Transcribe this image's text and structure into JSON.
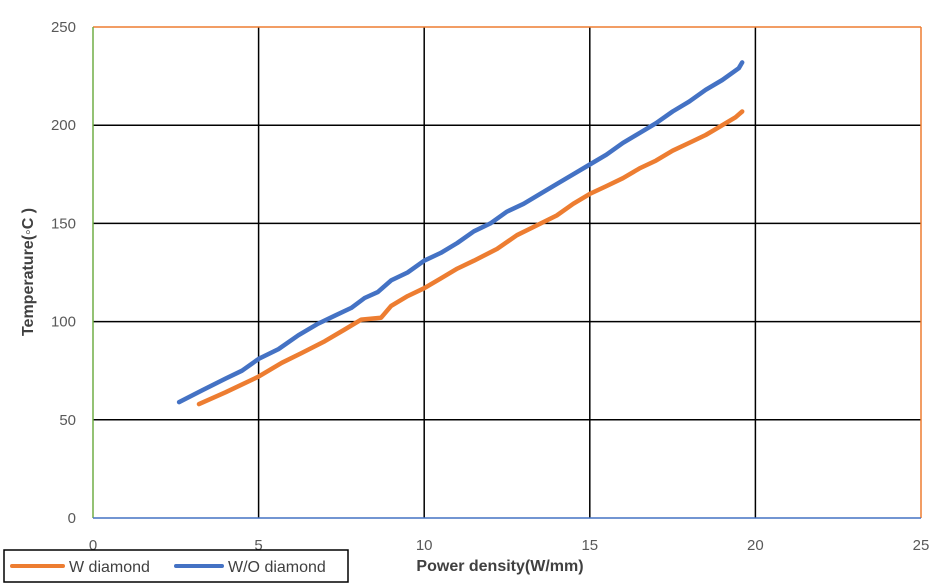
{
  "chart_data": {
    "type": "line",
    "title": "",
    "xlabel": "Power density(W/mm)",
    "ylabel": "Temperature(◦C )",
    "xlim": [
      0,
      25
    ],
    "ylim": [
      0,
      250
    ],
    "xticks": [
      0,
      5,
      10,
      15,
      20,
      25
    ],
    "yticks": [
      0,
      50,
      100,
      150,
      200,
      250
    ],
    "grid": true,
    "legend_position": "bottom-left",
    "series": [
      {
        "name": "W diamond",
        "color": "#ED7D31",
        "points": [
          [
            3.2,
            58
          ],
          [
            4.0,
            64
          ],
          [
            5.0,
            72
          ],
          [
            5.7,
            79
          ],
          [
            6.3,
            84
          ],
          [
            7.0,
            90
          ],
          [
            7.6,
            96
          ],
          [
            8.1,
            101
          ],
          [
            8.7,
            102
          ],
          [
            9.0,
            108
          ],
          [
            9.5,
            113
          ],
          [
            10.0,
            117
          ],
          [
            10.5,
            122
          ],
          [
            11.0,
            127
          ],
          [
            11.5,
            131
          ],
          [
            12.2,
            137
          ],
          [
            12.8,
            144
          ],
          [
            13.4,
            149
          ],
          [
            14.0,
            154
          ],
          [
            14.5,
            160
          ],
          [
            15.0,
            165
          ],
          [
            15.5,
            169
          ],
          [
            16.0,
            173
          ],
          [
            16.5,
            178
          ],
          [
            17.0,
            182
          ],
          [
            17.5,
            187
          ],
          [
            18.0,
            191
          ],
          [
            18.5,
            195
          ],
          [
            19.0,
            200
          ],
          [
            19.4,
            204
          ],
          [
            19.6,
            207
          ]
        ]
      },
      {
        "name": "W/O diamond",
        "color": "#4472C4",
        "points": [
          [
            2.6,
            59
          ],
          [
            3.3,
            65
          ],
          [
            4.0,
            71
          ],
          [
            4.5,
            75
          ],
          [
            5.0,
            81
          ],
          [
            5.6,
            86
          ],
          [
            6.2,
            93
          ],
          [
            6.8,
            99
          ],
          [
            7.3,
            103
          ],
          [
            7.8,
            107
          ],
          [
            8.2,
            112
          ],
          [
            8.6,
            115
          ],
          [
            9.0,
            121
          ],
          [
            9.5,
            125
          ],
          [
            10.0,
            131
          ],
          [
            10.5,
            135
          ],
          [
            11.0,
            140
          ],
          [
            11.5,
            146
          ],
          [
            12.0,
            150
          ],
          [
            12.5,
            156
          ],
          [
            13.0,
            160
          ],
          [
            13.5,
            165
          ],
          [
            14.0,
            170
          ],
          [
            14.5,
            175
          ],
          [
            15.0,
            180
          ],
          [
            15.5,
            185
          ],
          [
            16.0,
            191
          ],
          [
            16.5,
            196
          ],
          [
            17.0,
            201
          ],
          [
            17.5,
            207
          ],
          [
            18.0,
            212
          ],
          [
            18.5,
            218
          ],
          [
            19.0,
            223
          ],
          [
            19.5,
            229
          ],
          [
            19.6,
            232
          ]
        ]
      }
    ]
  }
}
